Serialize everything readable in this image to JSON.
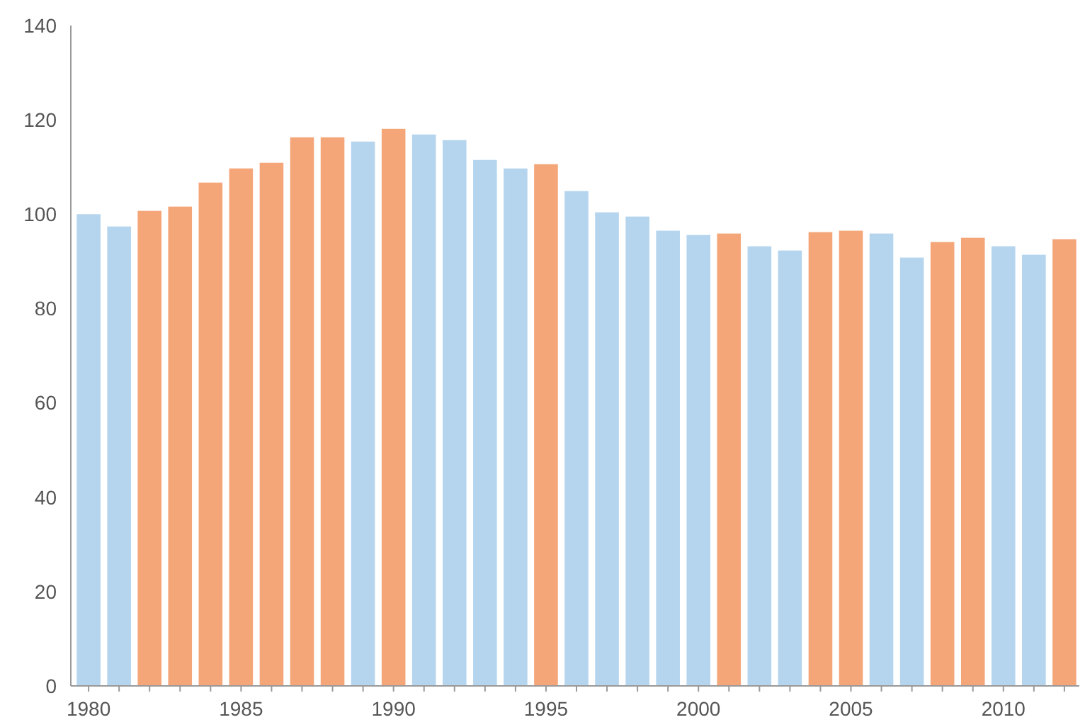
{
  "chart_data": {
    "type": "bar",
    "categories": [
      "1980",
      null,
      null,
      null,
      null,
      "1985",
      null,
      null,
      null,
      null,
      "1990",
      null,
      null,
      null,
      null,
      "1995",
      null,
      null,
      null,
      null,
      "2000",
      null,
      null,
      null,
      null,
      "2005",
      null,
      null,
      null,
      null,
      "2010",
      null,
      null
    ],
    "values": [
      100,
      97.4,
      100.7,
      101.6,
      106.7,
      109.7,
      110.9,
      116.3,
      116.3,
      115.4,
      118.1,
      116.9,
      115.7,
      111.5,
      109.7,
      110.6,
      104.9,
      100.4,
      99.5,
      96.5,
      95.6,
      95.9,
      93.2,
      92.3,
      96.2,
      96.5,
      95.9,
      90.8,
      94.1,
      95,
      93.2,
      91.4,
      94.7
    ],
    "colors": [
      "#b5d5ee",
      "#b5d5ee",
      "#f4a679",
      "#f4a679",
      "#f4a679",
      "#f4a679",
      "#f4a679",
      "#f4a679",
      "#f4a679",
      "#b5d5ee",
      "#f4a679",
      "#b5d5ee",
      "#b5d5ee",
      "#b5d5ee",
      "#b5d5ee",
      "#f4a679",
      "#b5d5ee",
      "#b5d5ee",
      "#b5d5ee",
      "#b5d5ee",
      "#b5d5ee",
      "#f4a679",
      "#b5d5ee",
      "#b5d5ee",
      "#f4a679",
      "#f4a679",
      "#b5d5ee",
      "#b5d5ee",
      "#f4a679",
      "#f4a679",
      "#b5d5ee",
      "#b5d5ee",
      "#f4a679"
    ],
    "ylim": [
      0,
      140
    ],
    "yticks": [
      0,
      20,
      40,
      60,
      80,
      100,
      120,
      140
    ],
    "grid": false
  }
}
